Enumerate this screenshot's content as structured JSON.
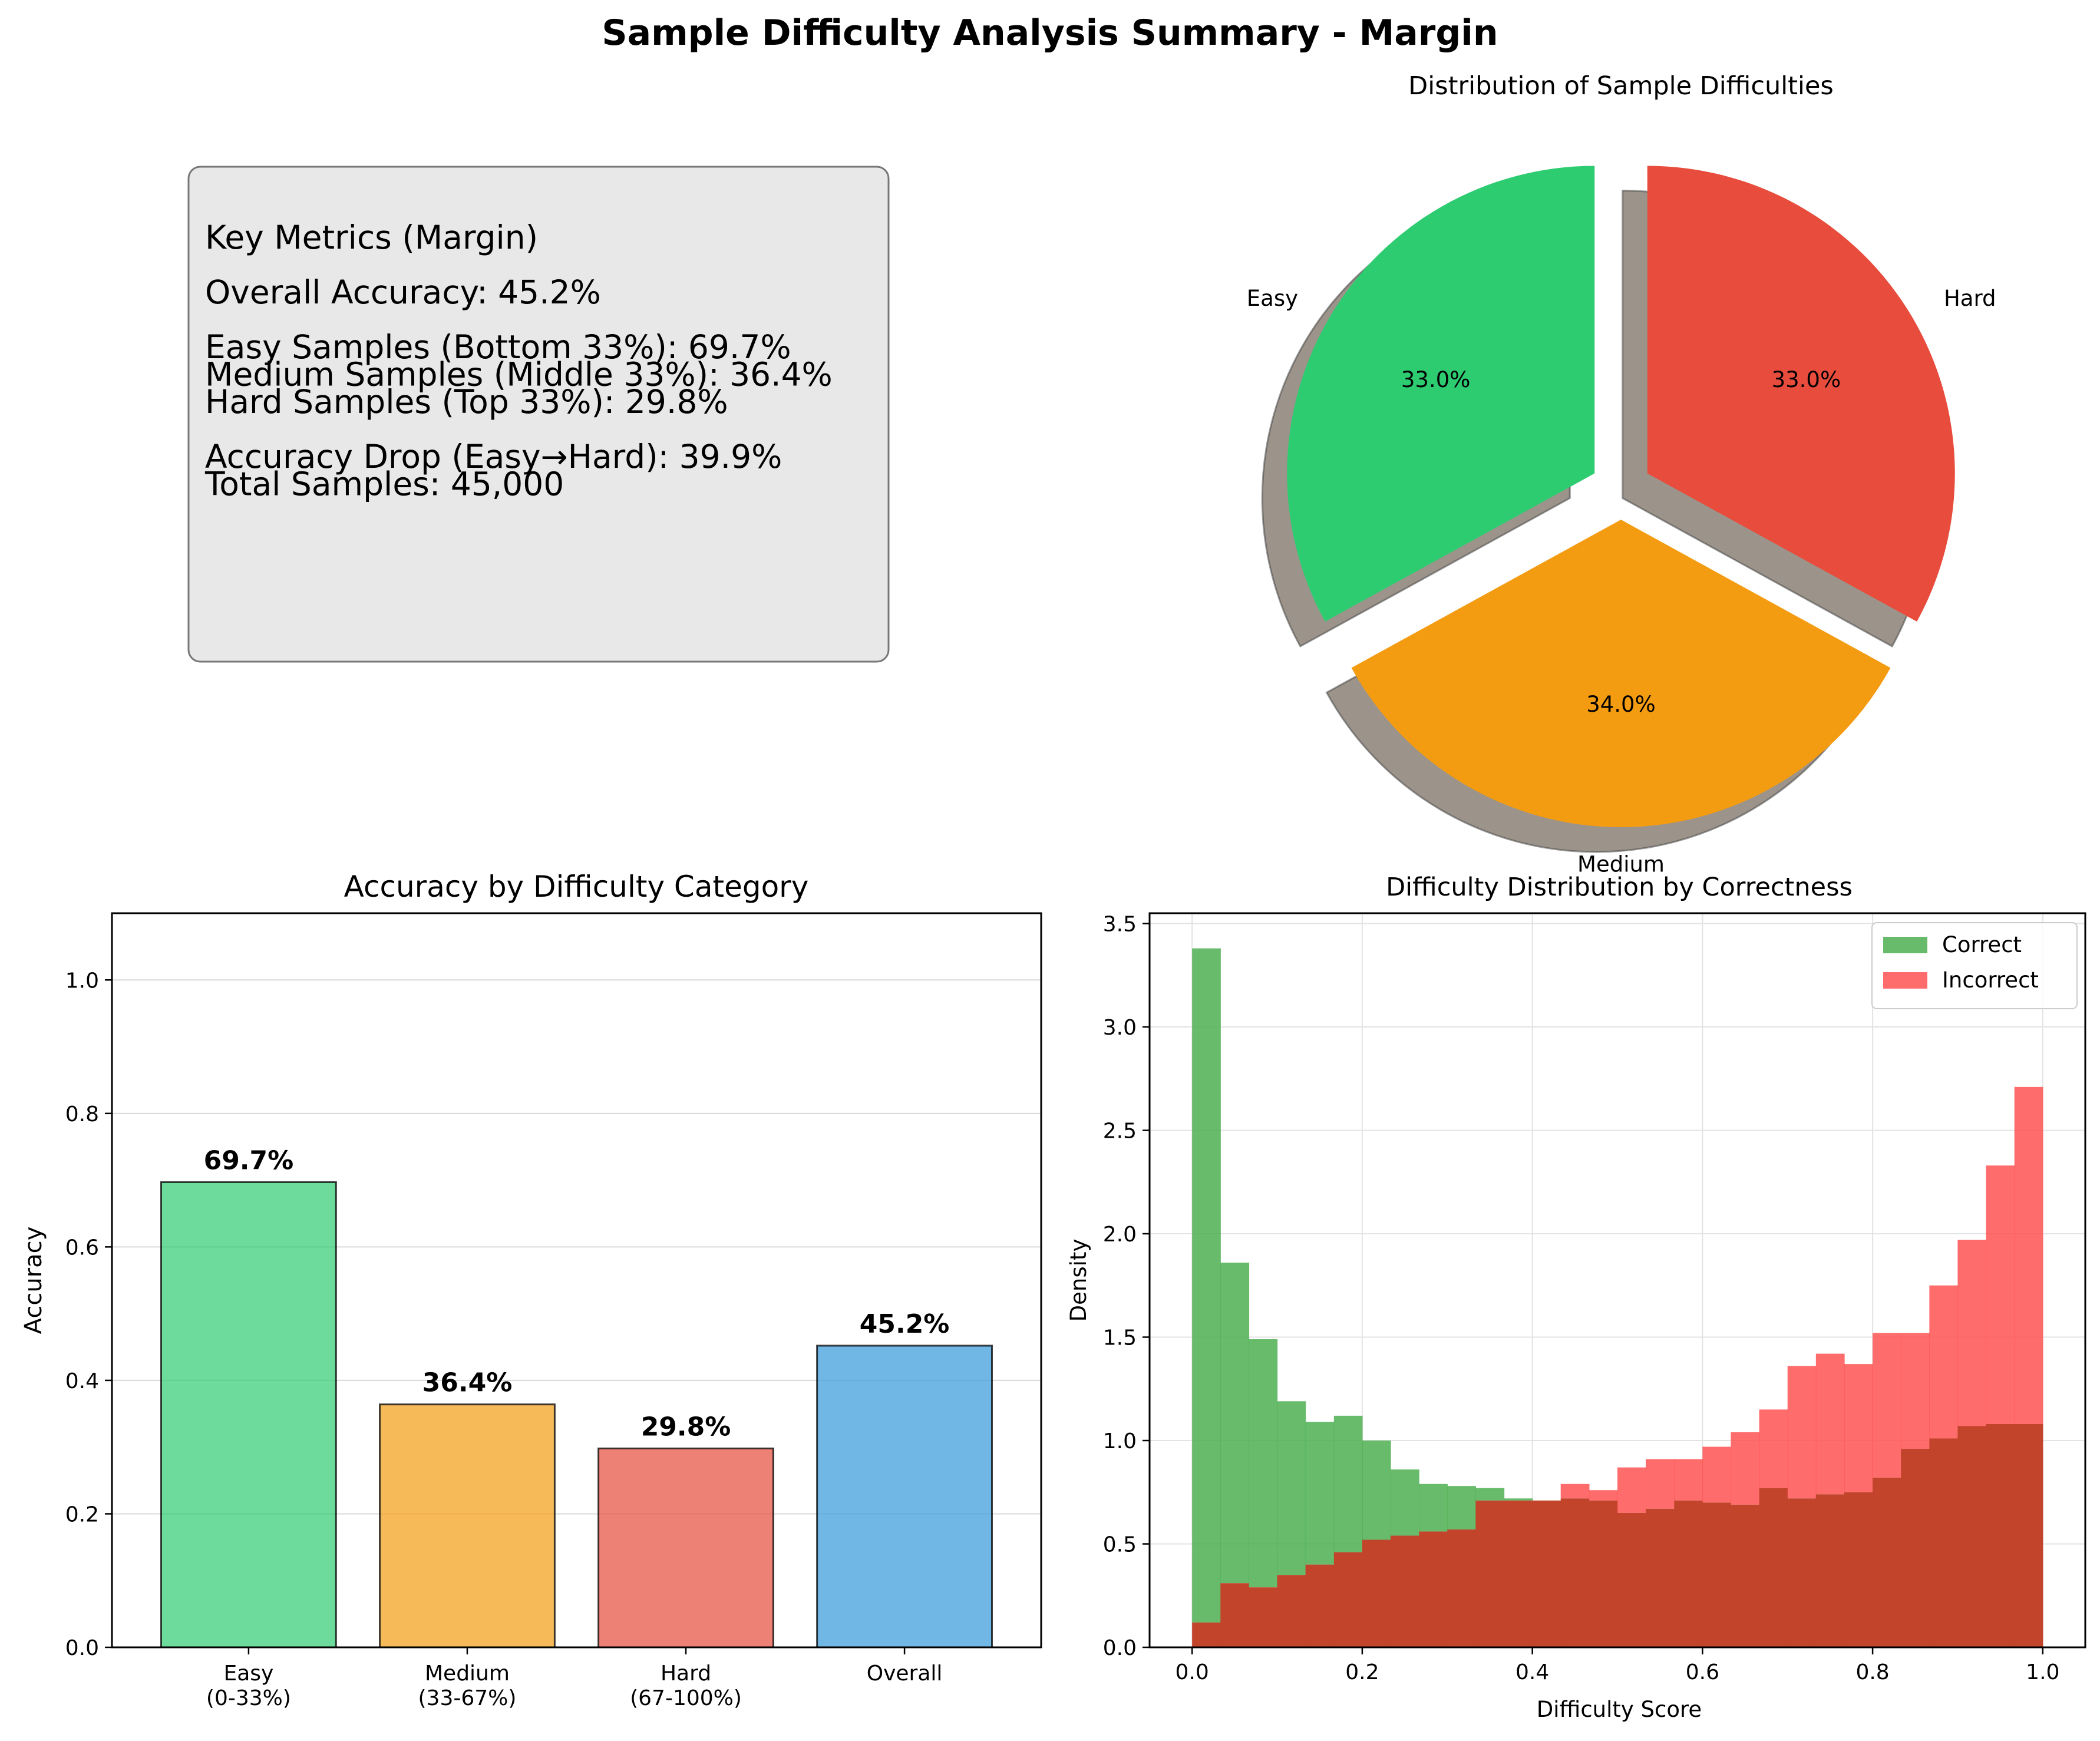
{
  "figure_title": "Sample Difficulty Analysis Summary - Margin",
  "metrics": {
    "lines": [
      "Key Metrics (Margin)",
      "",
      "Overall Accuracy: 45.2%",
      "",
      "Easy Samples (Bottom 33%): 69.7%",
      "Medium Samples (Middle 33%): 36.4%",
      "Hard Samples (Top 33%): 29.8%",
      "",
      "Accuracy Drop (Easy→Hard): 39.9%",
      "Total Samples: 45,000"
    ]
  },
  "colors": {
    "easy": "#2ecc71",
    "medium": "#f39c12",
    "hard": "#e74c3c",
    "overall": "#3498db",
    "correct": "#4caf50",
    "incorrect": "#ff5252",
    "overlap": "#c1442b"
  },
  "chart_data": [
    {
      "type": "pie",
      "title": "Distribution of Sample Difficulties",
      "labels": [
        "Easy",
        "Medium",
        "Hard"
      ],
      "values": [
        33.0,
        34.0,
        33.0
      ],
      "value_labels": [
        "33.0%",
        "34.0%",
        "33.0%"
      ],
      "start_angle_deg": 90,
      "explode": true,
      "shadow": true
    },
    {
      "type": "bar",
      "title": "Accuracy by Difficulty Category",
      "categories": [
        [
          "Easy",
          "(0-33%)"
        ],
        [
          "Medium",
          "(33-67%)"
        ],
        [
          "Hard",
          "(67-100%)"
        ],
        [
          "Overall"
        ]
      ],
      "values": [
        0.697,
        0.364,
        0.298,
        0.452
      ],
      "value_labels": [
        "69.7%",
        "36.4%",
        "29.8%",
        "45.2%"
      ],
      "xlabel": "",
      "ylabel": "Accuracy",
      "ylim": [
        0,
        1.1
      ],
      "yticks": [
        0.0,
        0.2,
        0.4,
        0.6,
        0.8,
        1.0
      ],
      "ytick_labels": [
        "0.0",
        "0.2",
        "0.4",
        "0.6",
        "0.8",
        "1.0"
      ],
      "grid": "y"
    },
    {
      "type": "histogram",
      "title": "Difficulty Distribution by Correctness",
      "xlabel": "Difficulty Score",
      "ylabel": "Density",
      "xlim": [
        -0.05,
        1.05
      ],
      "ylim": [
        0,
        3.55
      ],
      "xticks": [
        0.0,
        0.2,
        0.4,
        0.6,
        0.8,
        1.0
      ],
      "xtick_labels": [
        "0.0",
        "0.2",
        "0.4",
        "0.6",
        "0.8",
        "1.0"
      ],
      "yticks": [
        0.0,
        0.5,
        1.0,
        1.5,
        2.0,
        2.5,
        3.0,
        3.5
      ],
      "ytick_labels": [
        "0.0",
        "0.5",
        "1.0",
        "1.5",
        "2.0",
        "2.5",
        "3.0",
        "3.5"
      ],
      "grid": "both",
      "legend_position": "top-right",
      "bin_edges": [
        0.0,
        0.0333,
        0.0667,
        0.1,
        0.1333,
        0.1667,
        0.2,
        0.2333,
        0.2667,
        0.3,
        0.3333,
        0.3667,
        0.4,
        0.4333,
        0.4667,
        0.5,
        0.5333,
        0.5667,
        0.6,
        0.6333,
        0.6667,
        0.7,
        0.7333,
        0.7667,
        0.8,
        0.8333,
        0.8667,
        0.9,
        0.9333,
        0.9667,
        1.0
      ],
      "series": [
        {
          "name": "Correct",
          "values": [
            3.38,
            1.86,
            1.49,
            1.19,
            1.09,
            1.12,
            1.0,
            0.86,
            0.79,
            0.78,
            0.77,
            0.72,
            0.71,
            0.72,
            0.71,
            0.65,
            0.67,
            0.71,
            0.7,
            0.69,
            0.77,
            0.72,
            0.74,
            0.75,
            0.82,
            0.96,
            1.01,
            1.07,
            1.08,
            1.08
          ]
        },
        {
          "name": "Incorrect",
          "values": [
            0.12,
            0.31,
            0.29,
            0.35,
            0.4,
            0.46,
            0.52,
            0.54,
            0.56,
            0.57,
            0.71,
            0.71,
            0.71,
            0.79,
            0.76,
            0.87,
            0.91,
            0.91,
            0.97,
            1.04,
            1.15,
            1.36,
            1.42,
            1.37,
            1.52,
            1.52,
            1.75,
            1.97,
            2.33,
            2.71
          ]
        }
      ]
    }
  ]
}
